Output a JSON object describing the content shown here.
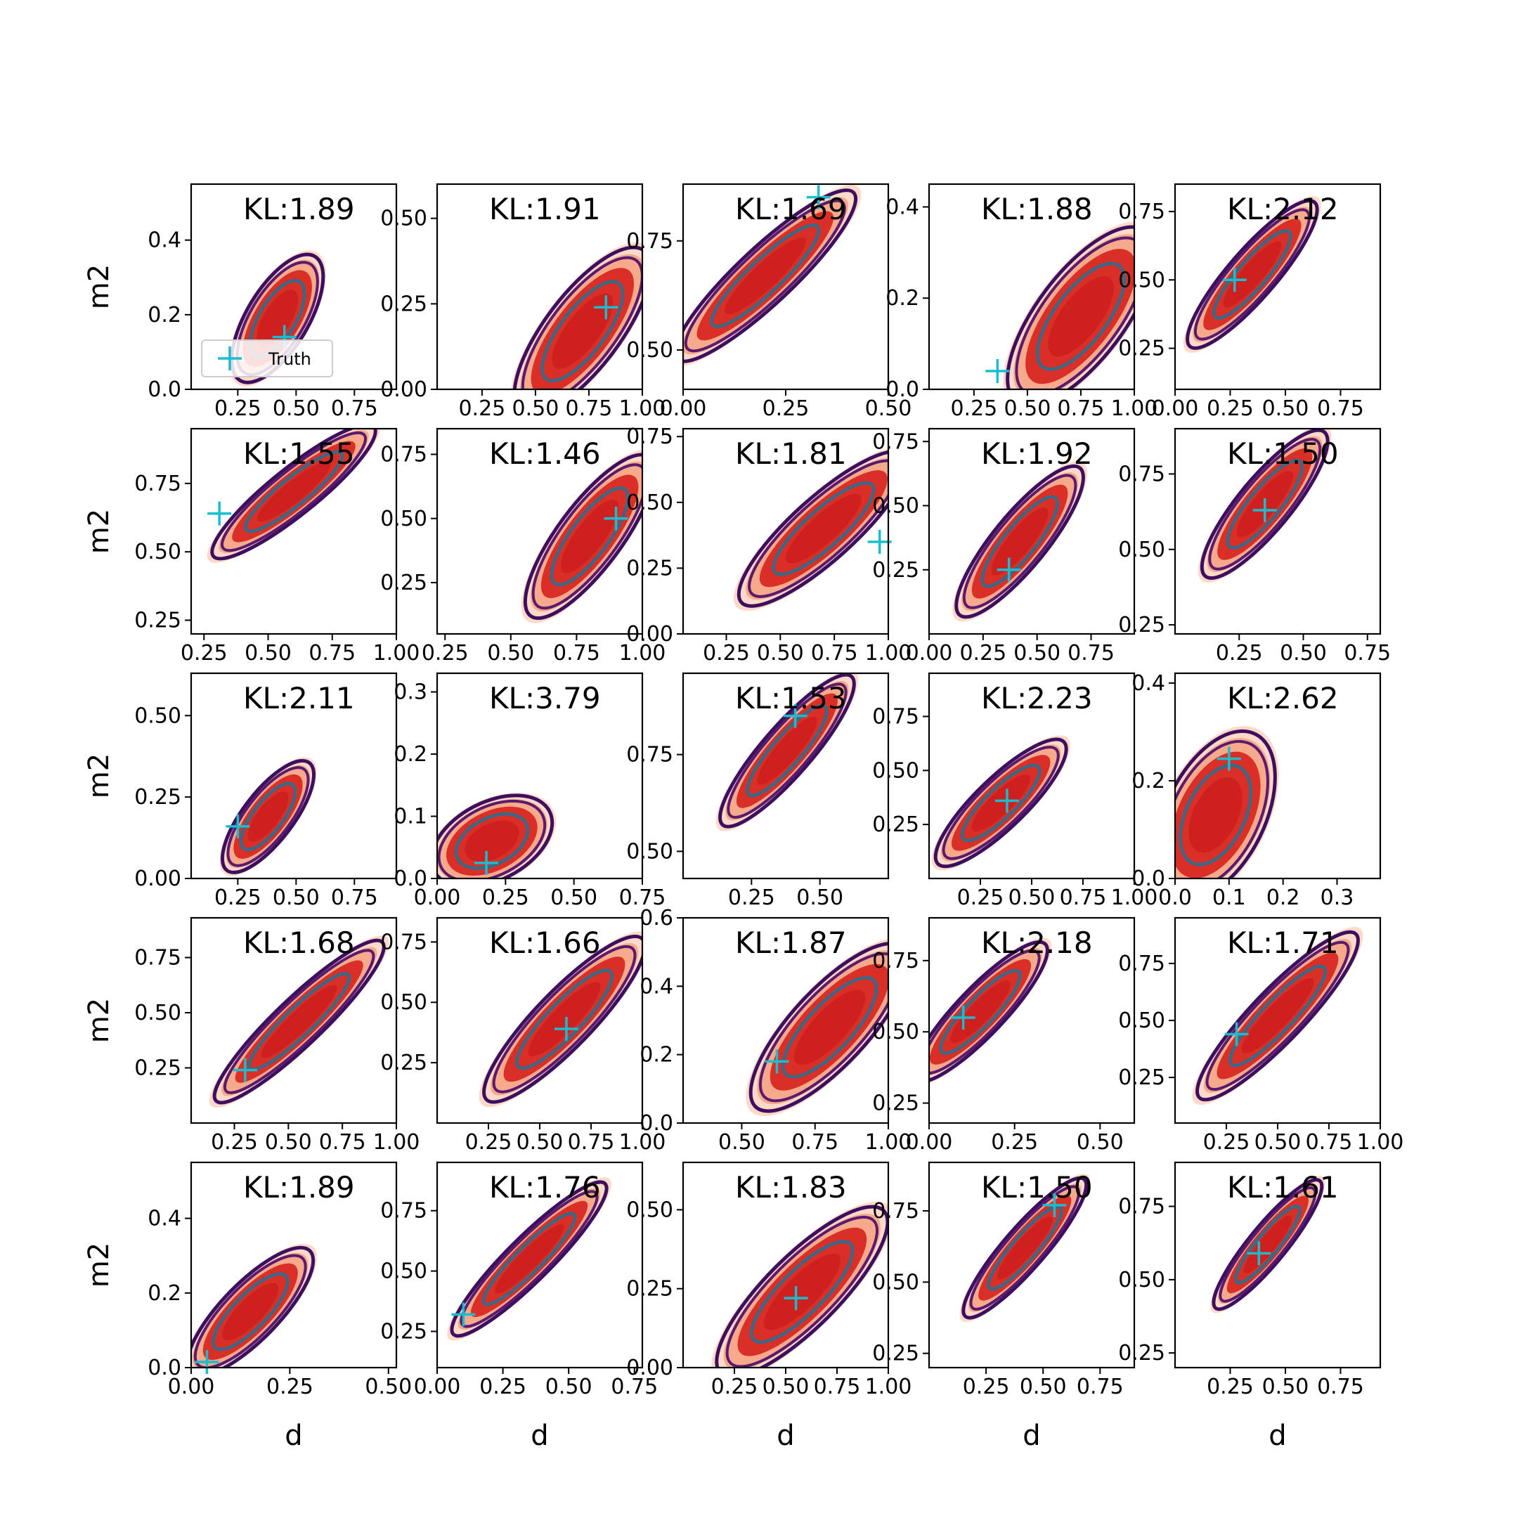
{
  "legend": {
    "label": "Truth",
    "marker_color": "#17becf"
  },
  "colors": {
    "fill_outer": "#fdd5c4",
    "fill_mid": "#f7a98b",
    "fill_inner": "#d92f26",
    "fill_core": "#c8171d",
    "line_outer": "#3d0f5e",
    "line_mid": "#5a1a6e",
    "line_inner": "#346a8a",
    "truth": "#17becf"
  },
  "chart_data": [
    {
      "type": "contour",
      "kl": "KL:1.89",
      "xlabel": "",
      "ylabel": "m2",
      "xlim": [
        0.05,
        0.93
      ],
      "ylim": [
        0,
        0.55
      ],
      "xticks": [
        "0.25",
        "0.50",
        "0.75"
      ],
      "yticks": [
        "0.0",
        "0.2",
        "0.4"
      ],
      "truth": [
        0.45,
        0.14
      ],
      "center": [
        0.42,
        0.19
      ],
      "sx": 0.08,
      "sy": 0.07,
      "rho": 0.65
    },
    {
      "type": "contour",
      "kl": "KL:1.91",
      "xlabel": "",
      "ylabel": "",
      "xlim": [
        0.04,
        1.0
      ],
      "ylim": [
        0,
        0.6
      ],
      "xticks": [
        "0.25",
        "0.50",
        "0.75",
        "1.00"
      ],
      "yticks": [
        "0.00",
        "0.25",
        "0.50"
      ],
      "truth": [
        0.83,
        0.24
      ],
      "center": [
        0.72,
        0.17
      ],
      "sx": 0.13,
      "sy": 0.1,
      "rho": 0.75
    },
    {
      "type": "contour",
      "kl": "KL:1.69",
      "xlabel": "",
      "ylabel": "",
      "xlim": [
        0,
        0.5
      ],
      "ylim": [
        0.41,
        0.88
      ],
      "xticks": [
        "0.00",
        "0.25",
        "0.50"
      ],
      "yticks": [
        "0.50",
        "0.75"
      ],
      "truth": [
        0.33,
        0.85
      ],
      "center": [
        0.2,
        0.67
      ],
      "sx": 0.09,
      "sy": 0.08,
      "rho": 0.9
    },
    {
      "type": "contour",
      "kl": "KL:1.88",
      "xlabel": "",
      "ylabel": "",
      "xlim": [
        0.04,
        1.0
      ],
      "ylim": [
        0,
        0.45
      ],
      "xticks": [
        "0.25",
        "0.50",
        "0.75",
        "1.00"
      ],
      "yticks": [
        "0.0",
        "0.2",
        "0.4"
      ],
      "truth": [
        0.36,
        0.04
      ],
      "center": [
        0.75,
        0.16
      ],
      "sx": 0.14,
      "sy": 0.08,
      "rho": 0.7
    },
    {
      "type": "contour",
      "kl": "KL:2.12",
      "xlabel": "",
      "ylabel": "",
      "xlim": [
        0,
        0.93
      ],
      "ylim": [
        0.1,
        0.85
      ],
      "xticks": [
        "0.00",
        "0.25",
        "0.50",
        "0.75"
      ],
      "yticks": [
        "0.25",
        "0.50",
        "0.75"
      ],
      "truth": [
        0.27,
        0.5
      ],
      "center": [
        0.35,
        0.52
      ],
      "sx": 0.12,
      "sy": 0.11,
      "rho": 0.88
    },
    {
      "type": "contour",
      "kl": "KL:1.55",
      "xlabel": "",
      "ylabel": "m2",
      "xlim": [
        0.2,
        1.0
      ],
      "ylim": [
        0.2,
        0.95
      ],
      "xticks": [
        "0.25",
        "0.50",
        "0.75",
        "1.00"
      ],
      "yticks": [
        "0.25",
        "0.50",
        "0.75"
      ],
      "truth": [
        0.31,
        0.64
      ],
      "center": [
        0.6,
        0.72
      ],
      "sx": 0.13,
      "sy": 0.1,
      "rho": 0.9
    },
    {
      "type": "contour",
      "kl": "KL:1.46",
      "xlabel": "",
      "ylabel": "",
      "xlim": [
        0.22,
        1.0
      ],
      "ylim": [
        0.05,
        0.85
      ],
      "xticks": [
        "0.25",
        "0.50",
        "0.75",
        "1.00"
      ],
      "yticks": [
        "0.25",
        "0.50",
        "0.75"
      ],
      "truth": [
        0.9,
        0.5
      ],
      "center": [
        0.8,
        0.43
      ],
      "sx": 0.1,
      "sy": 0.13,
      "rho": 0.8
    },
    {
      "type": "contour",
      "kl": "KL:1.81",
      "xlabel": "",
      "ylabel": "",
      "xlim": [
        0.05,
        1.0
      ],
      "ylim": [
        0,
        0.78
      ],
      "xticks": [
        "0.25",
        "0.50",
        "0.75",
        "1.00"
      ],
      "yticks": [
        "0.00",
        "0.25",
        "0.50",
        "0.75"
      ],
      "truth": [
        0.96,
        0.35
      ],
      "center": [
        0.7,
        0.4
      ],
      "sx": 0.16,
      "sy": 0.12,
      "rho": 0.85
    },
    {
      "type": "contour",
      "kl": "KL:1.92",
      "xlabel": "",
      "ylabel": "",
      "xlim": [
        0,
        0.95
      ],
      "ylim": [
        0,
        0.8
      ],
      "xticks": [
        "0.00",
        "0.25",
        "0.50",
        "0.75"
      ],
      "yticks": [
        "0.25",
        "0.50",
        "0.75"
      ],
      "truth": [
        0.37,
        0.25
      ],
      "center": [
        0.42,
        0.36
      ],
      "sx": 0.12,
      "sy": 0.12,
      "rho": 0.85
    },
    {
      "type": "contour",
      "kl": "KL:1.50",
      "xlabel": "",
      "ylabel": "",
      "xlim": [
        0,
        0.8
      ],
      "ylim": [
        0.22,
        0.9
      ],
      "xticks": [
        "0.25",
        "0.50",
        "0.75"
      ],
      "yticks": [
        "0.25",
        "0.50",
        "0.75"
      ],
      "truth": [
        0.35,
        0.63
      ],
      "center": [
        0.35,
        0.65
      ],
      "sx": 0.1,
      "sy": 0.1,
      "rho": 0.85
    },
    {
      "type": "contour",
      "kl": "KL:2.11",
      "xlabel": "",
      "ylabel": "m2",
      "xlim": [
        0.05,
        0.93
      ],
      "ylim": [
        0,
        0.63
      ],
      "xticks": [
        "0.25",
        "0.50",
        "0.75"
      ],
      "yticks": [
        "0.00",
        "0.25",
        "0.50"
      ],
      "truth": [
        0.25,
        0.16
      ],
      "center": [
        0.38,
        0.19
      ],
      "sx": 0.08,
      "sy": 0.07,
      "rho": 0.75
    },
    {
      "type": "contour",
      "kl": "KL:3.79",
      "xlabel": "",
      "ylabel": "",
      "xlim": [
        0,
        0.75
      ],
      "ylim": [
        0,
        0.33
      ],
      "xticks": [
        "0.00",
        "0.25",
        "0.50",
        "0.75"
      ],
      "yticks": [
        "0.0",
        "0.1",
        "0.2",
        "0.3"
      ],
      "truth": [
        0.18,
        0.025
      ],
      "center": [
        0.2,
        0.06
      ],
      "sx": 0.09,
      "sy": 0.03,
      "rho": 0.4
    },
    {
      "type": "contour",
      "kl": "KL:1.53",
      "xlabel": "",
      "ylabel": "",
      "xlim": [
        0,
        0.75
      ],
      "ylim": [
        0.43,
        0.96
      ],
      "xticks": [
        "0.25",
        "0.50"
      ],
      "yticks": [
        "0.50",
        "0.75"
      ],
      "truth": [
        0.41,
        0.85
      ],
      "center": [
        0.38,
        0.76
      ],
      "sx": 0.1,
      "sy": 0.08,
      "rho": 0.88
    },
    {
      "type": "contour",
      "kl": "KL:2.23",
      "xlabel": "",
      "ylabel": "",
      "xlim": [
        0,
        1.0
      ],
      "ylim": [
        0,
        0.95
      ],
      "xticks": [
        "0.25",
        "0.50",
        "0.75",
        "1.00"
      ],
      "yticks": [
        "0.25",
        "0.50",
        "0.75"
      ],
      "truth": [
        0.38,
        0.36
      ],
      "center": [
        0.35,
        0.35
      ],
      "sx": 0.13,
      "sy": 0.12,
      "rho": 0.85
    },
    {
      "type": "contour",
      "kl": "KL:2.62",
      "xlabel": "",
      "ylabel": "",
      "xlim": [
        0,
        0.38
      ],
      "ylim": [
        0,
        0.42
      ],
      "xticks": [
        "0.0",
        "0.1",
        "0.2",
        "0.3"
      ],
      "yticks": [
        "0.0",
        "0.2",
        "0.4"
      ],
      "truth": [
        0.1,
        0.245
      ],
      "center": [
        0.075,
        0.13
      ],
      "sx": 0.045,
      "sy": 0.07,
      "rho": 0.45
    },
    {
      "type": "contour",
      "kl": "KL:1.68",
      "xlabel": "",
      "ylabel": "m2",
      "xlim": [
        0.05,
        1.0
      ],
      "ylim": [
        0,
        0.93
      ],
      "xticks": [
        "0.25",
        "0.50",
        "0.75",
        "1.00"
      ],
      "yticks": [
        "0.25",
        "0.50",
        "0.75"
      ],
      "truth": [
        0.3,
        0.24
      ],
      "center": [
        0.55,
        0.46
      ],
      "sx": 0.16,
      "sy": 0.15,
      "rho": 0.92
    },
    {
      "type": "contour",
      "kl": "KL:1.66",
      "xlabel": "",
      "ylabel": "",
      "xlim": [
        0,
        1.0
      ],
      "ylim": [
        0,
        0.85
      ],
      "xticks": [
        "0.25",
        "0.50",
        "0.75",
        "1.00"
      ],
      "yticks": [
        "0.25",
        "0.50",
        "0.75"
      ],
      "truth": [
        0.63,
        0.39
      ],
      "center": [
        0.62,
        0.43
      ],
      "sx": 0.16,
      "sy": 0.14,
      "rho": 0.88
    },
    {
      "type": "contour",
      "kl": "KL:1.87",
      "xlabel": "",
      "ylabel": "",
      "xlim": [
        0.3,
        1.0
      ],
      "ylim": [
        0,
        0.6
      ],
      "xticks": [
        "0.50",
        "0.75",
        "1.00"
      ],
      "yticks": [
        "0.0",
        "0.2",
        "0.4",
        "0.6"
      ],
      "truth": [
        0.62,
        0.18
      ],
      "center": [
        0.8,
        0.28
      ],
      "sx": 0.11,
      "sy": 0.1,
      "rho": 0.78
    },
    {
      "type": "contour",
      "kl": "KL:2.18",
      "xlabel": "",
      "ylabel": "",
      "xlim": [
        0,
        0.6
      ],
      "ylim": [
        0.18,
        0.9
      ],
      "xticks": [
        "0.00",
        "0.25",
        "0.50"
      ],
      "yticks": [
        "0.25",
        "0.50",
        "0.75"
      ],
      "truth": [
        0.1,
        0.55
      ],
      "center": [
        0.15,
        0.57
      ],
      "sx": 0.08,
      "sy": 0.1,
      "rho": 0.88
    },
    {
      "type": "contour",
      "kl": "KL:1.71",
      "xlabel": "",
      "ylabel": "",
      "xlim": [
        0,
        1.0
      ],
      "ylim": [
        0.05,
        0.95
      ],
      "xticks": [
        "0.25",
        "0.50",
        "0.75",
        "1.00"
      ],
      "yticks": [
        "0.25",
        "0.50",
        "0.75"
      ],
      "truth": [
        0.3,
        0.44
      ],
      "center": [
        0.5,
        0.52
      ],
      "sx": 0.16,
      "sy": 0.15,
      "rho": 0.9
    },
    {
      "type": "contour",
      "kl": "KL:1.89",
      "xlabel": "d",
      "ylabel": "m2",
      "xlim": [
        0,
        0.52
      ],
      "ylim": [
        0,
        0.55
      ],
      "xticks": [
        "0.00",
        "0.25",
        "0.50"
      ],
      "yticks": [
        "0.0",
        "0.2",
        "0.4"
      ],
      "truth": [
        0.04,
        0.015
      ],
      "center": [
        0.15,
        0.15
      ],
      "sx": 0.065,
      "sy": 0.07,
      "rho": 0.8
    },
    {
      "type": "contour",
      "kl": "KL:1.76",
      "xlabel": "d",
      "ylabel": "",
      "xlim": [
        0,
        0.78
      ],
      "ylim": [
        0.1,
        0.95
      ],
      "xticks": [
        "0.00",
        "0.25",
        "0.50",
        "0.75"
      ],
      "yticks": [
        "0.25",
        "0.50",
        "0.75"
      ],
      "truth": [
        0.1,
        0.32
      ],
      "center": [
        0.35,
        0.55
      ],
      "sx": 0.12,
      "sy": 0.13,
      "rho": 0.92
    },
    {
      "type": "contour",
      "kl": "KL:1.83",
      "xlabel": "d",
      "ylabel": "",
      "xlim": [
        0,
        1.0
      ],
      "ylim": [
        0,
        0.65
      ],
      "xticks": [
        "0.25",
        "0.50",
        "0.75",
        "1.00"
      ],
      "yticks": [
        "0.00",
        "0.25",
        "0.50"
      ],
      "truth": [
        0.55,
        0.22
      ],
      "center": [
        0.58,
        0.24
      ],
      "sx": 0.17,
      "sy": 0.11,
      "rho": 0.82
    },
    {
      "type": "contour",
      "kl": "KL:1.50",
      "xlabel": "d",
      "ylabel": "",
      "xlim": [
        0,
        0.9
      ],
      "ylim": [
        0.2,
        0.92
      ],
      "xticks": [
        "0.25",
        "0.50",
        "0.75"
      ],
      "yticks": [
        "0.25",
        "0.50",
        "0.75"
      ],
      "truth": [
        0.55,
        0.77
      ],
      "center": [
        0.42,
        0.62
      ],
      "sx": 0.11,
      "sy": 0.1,
      "rho": 0.9
    },
    {
      "type": "contour",
      "kl": "KL:1.61",
      "xlabel": "d",
      "ylabel": "",
      "xlim": [
        0,
        0.93
      ],
      "ylim": [
        0.2,
        0.9
      ],
      "xticks": [
        "0.25",
        "0.50",
        "0.75"
      ],
      "yticks": [
        "0.25",
        "0.50",
        "0.75"
      ],
      "truth": [
        0.38,
        0.59
      ],
      "center": [
        0.42,
        0.62
      ],
      "sx": 0.1,
      "sy": 0.09,
      "rho": 0.9
    }
  ]
}
